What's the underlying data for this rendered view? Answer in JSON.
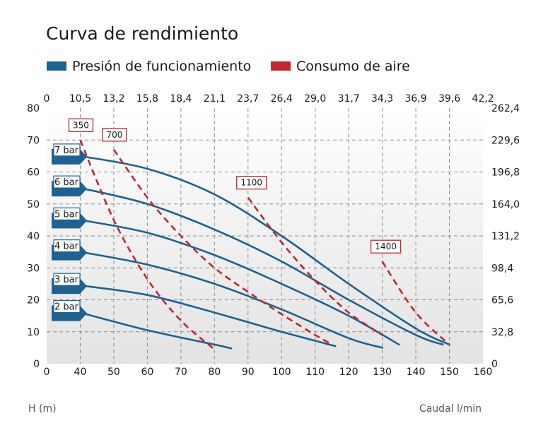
{
  "chart_data": {
    "type": "line",
    "title": "Curva de rendimiento",
    "xlabel": "Caudal l/min",
    "ylabel": "H (m)",
    "xlim": [
      0,
      160
    ],
    "ylim": [
      0,
      80
    ],
    "x_ticks": [
      "0",
      "40",
      "50",
      "60",
      "70",
      "80",
      "90",
      "100",
      "110",
      "120",
      "130",
      "140",
      "150",
      "160"
    ],
    "y_ticks_left": [
      "0",
      "10",
      "20",
      "30",
      "40",
      "50",
      "60",
      "70",
      "80"
    ],
    "y_ticks_right": [
      "0",
      "32,8",
      "65,6",
      "98,4",
      "131,2",
      "164,0",
      "196,8",
      "229,6",
      "262,4"
    ],
    "x_ticks_top": [
      "0",
      "10,5",
      "13,2",
      "15,8",
      "18,4",
      "21,1",
      "23,7",
      "26,4",
      "29,0",
      "31,7",
      "34,3",
      "36,9",
      "39,6",
      "42,2"
    ],
    "legend": {
      "position": "top",
      "items": [
        {
          "label": "Presión de funcionamiento",
          "color": "#1f6191"
        },
        {
          "label": "Consumo de aire",
          "color": "#c0282d"
        }
      ]
    },
    "grid": true,
    "pressure_series": [
      {
        "name": "7 bar",
        "x": [
          40,
          60,
          80,
          100,
          120,
          140,
          150
        ],
        "y": [
          65,
          61,
          53,
          40,
          25,
          11,
          6
        ]
      },
      {
        "name": "6 bar",
        "x": [
          40,
          60,
          80,
          100,
          120,
          140,
          148
        ],
        "y": [
          55,
          50,
          42,
          32,
          20,
          9,
          6
        ]
      },
      {
        "name": "5 bar",
        "x": [
          40,
          60,
          80,
          100,
          120,
          135
        ],
        "y": [
          45,
          41,
          34,
          25,
          15,
          6
        ]
      },
      {
        "name": "4 bar",
        "x": [
          40,
          60,
          80,
          100,
          120,
          130
        ],
        "y": [
          35,
          31,
          25,
          17,
          8,
          5
        ]
      },
      {
        "name": "3 bar",
        "x": [
          40,
          60,
          80,
          100,
          116
        ],
        "y": [
          24.5,
          21.5,
          16,
          10,
          5.5
        ]
      },
      {
        "name": "2 bar",
        "x": [
          40,
          60,
          80,
          85
        ],
        "y": [
          16,
          10.5,
          6,
          4.8
        ]
      }
    ],
    "air_series": [
      {
        "name": "350",
        "x": [
          40,
          50,
          60,
          70,
          80
        ],
        "y": [
          70,
          45,
          26.5,
          13.5,
          4.5
        ]
      },
      {
        "name": "700",
        "x": [
          50,
          60,
          70,
          80,
          90,
          100,
          110,
          115
        ],
        "y": [
          67,
          52,
          40,
          30,
          22.5,
          15.5,
          9,
          6
        ]
      },
      {
        "name": "1100",
        "x": [
          90,
          100,
          110,
          120,
          130
        ],
        "y": [
          52,
          38,
          26,
          16,
          9
        ]
      },
      {
        "name": "1400",
        "x": [
          130,
          140,
          150
        ],
        "y": [
          32,
          16,
          6
        ]
      }
    ]
  }
}
